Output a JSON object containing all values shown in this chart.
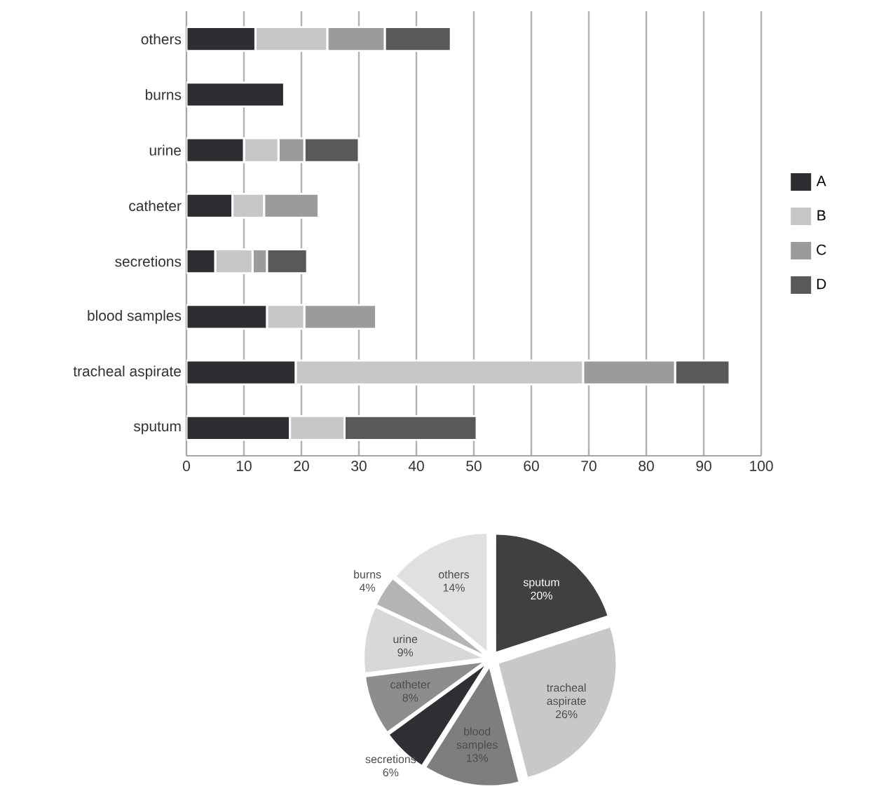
{
  "chart_data": [
    {
      "type": "bar",
      "orientation": "horizontal",
      "stacked": true,
      "categories": [
        "others",
        "burns",
        "urine",
        "catheter",
        "secretions",
        "blood samples",
        "tracheal aspirate",
        "sputum"
      ],
      "series": [
        {
          "name": "A",
          "color": "#2d2e31",
          "values": [
            12,
            17,
            10,
            8,
            5,
            14,
            19,
            18
          ]
        },
        {
          "name": "B",
          "color": "#c6c7c8",
          "values": [
            12.5,
            null,
            6,
            5.5,
            6.5,
            6.5,
            50,
            9.5
          ]
        },
        {
          "name": "C",
          "color": "#9a9b9c",
          "values": [
            10,
            null,
            4.5,
            9.5,
            2.5,
            12.5,
            16,
            null
          ]
        },
        {
          "name": "D",
          "color": "#58595b",
          "values": [
            11.5,
            null,
            9.5,
            null,
            7,
            null,
            9.5,
            23
          ]
        }
      ],
      "xlim": [
        0,
        100
      ],
      "xticks": [
        0,
        10,
        20,
        30,
        40,
        50,
        60,
        70,
        80,
        90,
        100
      ],
      "grid": "x",
      "legend": "right"
    },
    {
      "type": "pie",
      "categories": [
        "sputum",
        "tracheal aspirate",
        "blood samples",
        "secretions",
        "catheter",
        "urine",
        "burns",
        "others"
      ],
      "values": [
        20,
        26,
        13,
        6,
        8,
        9,
        4,
        14
      ],
      "value_labels": [
        "20%",
        "26%",
        "13%",
        "6%",
        "8%",
        "9%",
        "4%",
        "14%"
      ],
      "colors": [
        "#404043",
        "#c8c8c8",
        "#7d7e80",
        "#2e2f33",
        "#8c8d8f",
        "#d8d8d8",
        "#b4b4b4",
        "#e0e0e0"
      ]
    }
  ]
}
